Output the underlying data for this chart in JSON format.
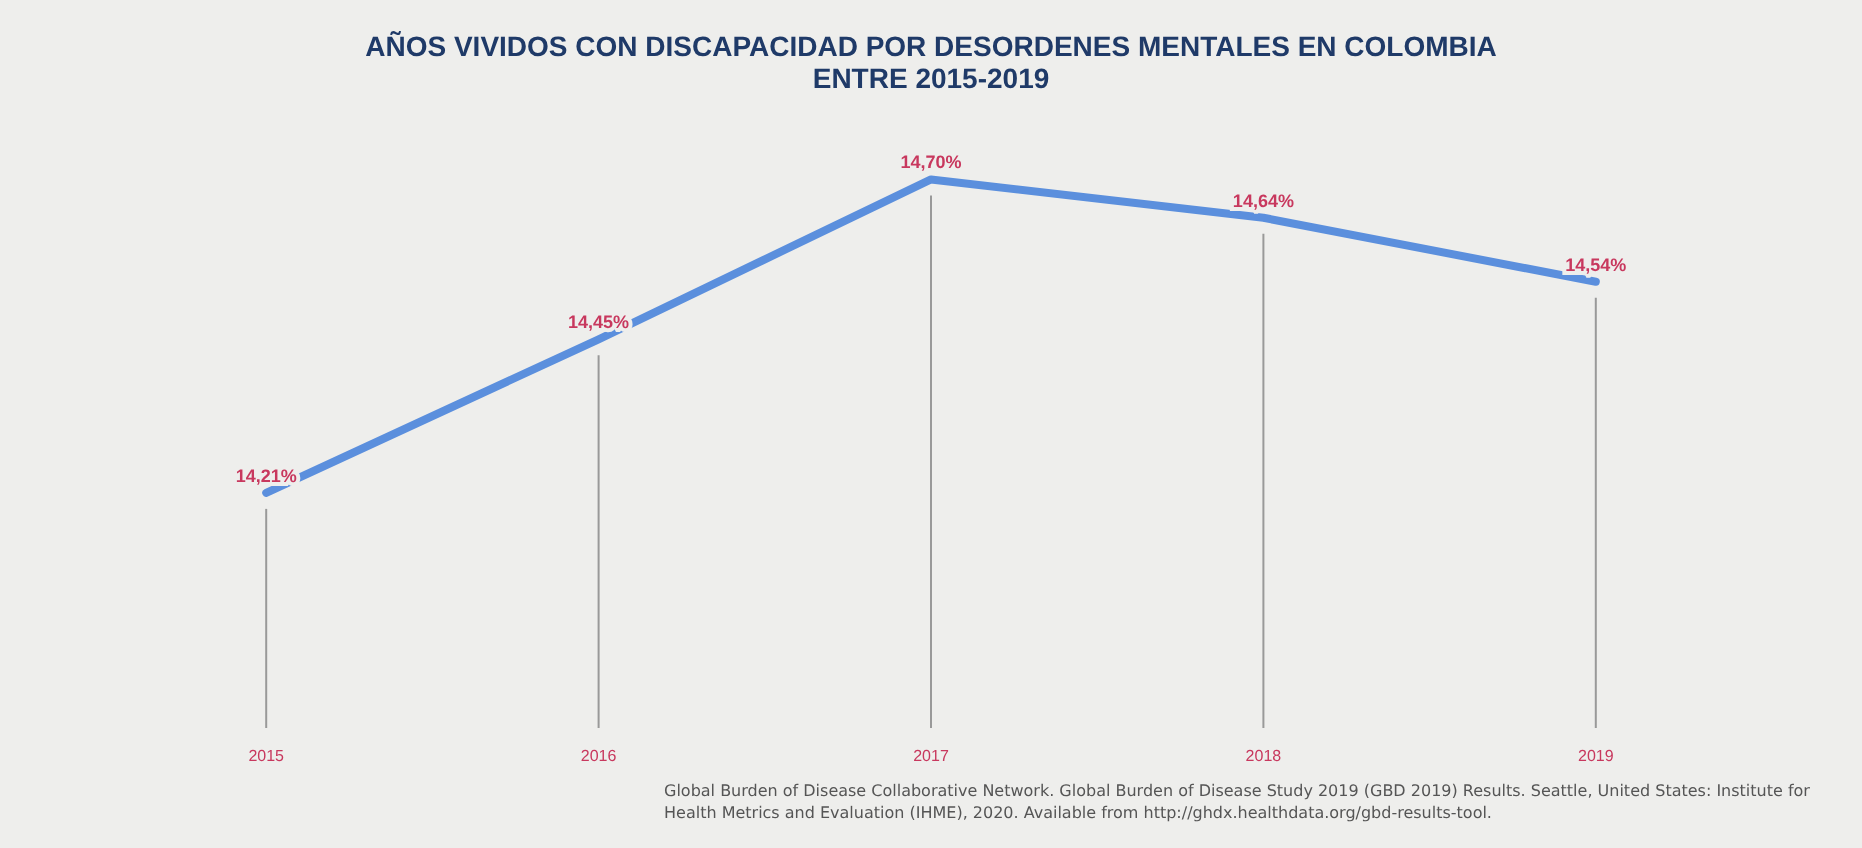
{
  "chart_data": {
    "type": "line",
    "title": "AÑOS VIVIDOS CON DISCAPACIDAD POR DESORDENES MENTALES EN COLOMBIA\nENTRE 2015-2019",
    "categories": [
      "2015",
      "2016",
      "2017",
      "2018",
      "2019"
    ],
    "series": [
      {
        "color": "#5b8fdd",
        "values": [
          14.21,
          14.45,
          14.7,
          14.64,
          14.54
        ],
        "value_labels": [
          "14,21%",
          "14,45%",
          "14,70%",
          "14,64%",
          "14,54%"
        ]
      }
    ],
    "annotations": [
      "Global Burden of Disease Collaborative Network. Global Burden of Disease Study 2019 (GBD 2019) Results. Seattle, United States: Institute for Health Metrics and Evaluation (IHME), 2020. Available from http://ghdx.healthdata.org/gbd-results-tool."
    ],
    "grid": "x",
    "line_style": "solid",
    "tick_labels": "x"
  }
}
